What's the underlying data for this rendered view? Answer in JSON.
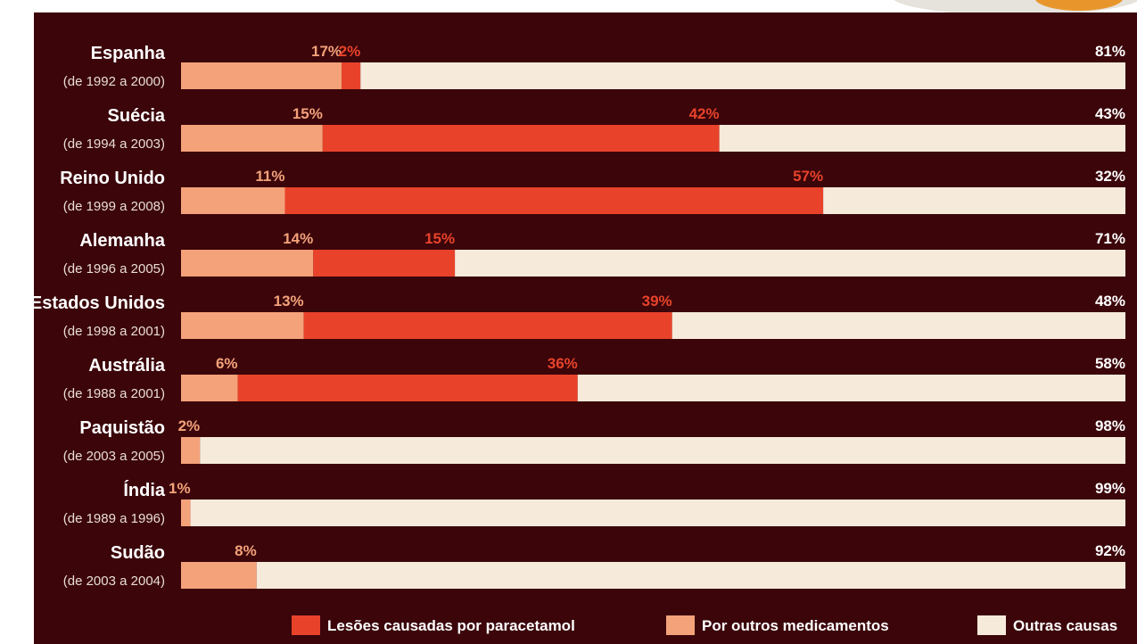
{
  "colors": {
    "background": "#3b050a",
    "paracetamol": "#e8432a",
    "other_medications": "#f4a27a",
    "other_causes": "#f6eadb"
  },
  "chart_data": {
    "type": "bar",
    "stacked": true,
    "orientation": "horizontal",
    "unit": "%",
    "xlim": [
      0,
      100
    ],
    "categories": [
      "Espanha",
      "Suécia",
      "Reino Unido",
      "Alemanha",
      "Estados Unidos",
      "Austrália",
      "Paquistão",
      "Índia",
      "Sudão"
    ],
    "periods": [
      "(de 1992 a 2000)",
      "(de 1994 a 2003)",
      "(de 1999 a 2008)",
      "(de 1996 a 2005)",
      "(de 1998 a 2001)",
      "(de 1988 a 2001)",
      "(de 2003 a 2005)",
      "(de 1989 a 1996)",
      "(de 2003 a 2004)"
    ],
    "series": [
      {
        "name": "Por outros medicamentos",
        "key": "other_medications",
        "values": [
          17,
          15,
          11,
          14,
          13,
          6,
          2,
          1,
          8
        ]
      },
      {
        "name": "Lesões causadas por paracetamol",
        "key": "paracetamol",
        "values": [
          2,
          42,
          57,
          15,
          39,
          36,
          0,
          0,
          0
        ]
      },
      {
        "name": "Outras causas",
        "key": "other_causes",
        "values": [
          81,
          43,
          32,
          71,
          48,
          58,
          98,
          99,
          92
        ]
      }
    ],
    "legend_order": [
      "Lesões causadas por paracetamol",
      "Por outros medicamentos",
      "Outras causas"
    ],
    "legend_position": "bottom",
    "grid": false
  }
}
